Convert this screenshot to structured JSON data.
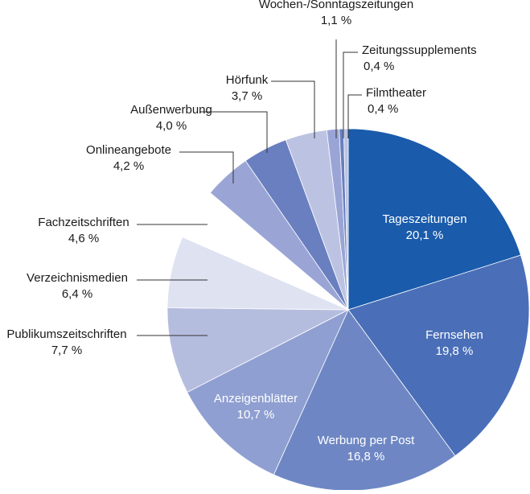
{
  "chart_data": {
    "type": "pie",
    "start": "12 o'clock",
    "direction": "clockwise",
    "slices": [
      {
        "label": "Tageszeitungen",
        "value": 20.1,
        "display": "20,1 %",
        "color": "#1a5bab",
        "label_color": "#ffffff",
        "label_placement": "inside"
      },
      {
        "label": "Fernsehen",
        "value": 19.8,
        "display": "19,8 %",
        "color": "#4a6fb8",
        "label_color": "#ffffff",
        "label_placement": "inside"
      },
      {
        "label": "Werbung per Post",
        "value": 16.8,
        "display": "16,8 %",
        "color": "#6e87c4",
        "label_color": "#ffffff",
        "label_placement": "inside"
      },
      {
        "label": "Anzeigenblätter",
        "value": 10.7,
        "display": "10,7 %",
        "color": "#8f9fd1",
        "label_color": "#ffffff",
        "label_placement": "inside"
      },
      {
        "label": "Publikumszeitschriften",
        "value": 7.7,
        "display": "7,7 %",
        "color": "#b5bddf",
        "label_color": "#1a1a1a",
        "label_placement": "outside-left"
      },
      {
        "label": "Verzeichnismedien",
        "value": 6.4,
        "display": "6,4 %",
        "color": "#dfe2f1",
        "label_color": "#1a1a1a",
        "label_placement": "outside-left"
      },
      {
        "label": "Fachzeitschriften",
        "value": 4.6,
        "display": "4,6 %",
        "color": "#ffffff",
        "label_color": "#1a1a1a",
        "label_placement": "outside-left"
      },
      {
        "label": "Onlineangebote",
        "value": 4.2,
        "display": "4,2 %",
        "color": "#9aa5d6",
        "label_color": "#1a1a1a",
        "label_placement": "outside-top"
      },
      {
        "label": "Außenwerbung",
        "value": 4.0,
        "display": "4,0 %",
        "color": "#6a7fc0",
        "label_color": "#1a1a1a",
        "label_placement": "outside-top"
      },
      {
        "label": "Hörfunk",
        "value": 3.7,
        "display": "3,7 %",
        "color": "#bcc3e2",
        "label_color": "#1a1a1a",
        "label_placement": "outside-top"
      },
      {
        "label": "Wochen-/Sonntagszeitungen",
        "value": 1.1,
        "display": "1,1 %",
        "color": "#9aa5d6",
        "label_color": "#1a1a1a",
        "label_placement": "outside-top"
      },
      {
        "label": "Zeitungssupplements",
        "value": 0.4,
        "display": "0,4 %",
        "color": "#6a7fc0",
        "label_color": "#1a1a1a",
        "label_placement": "outside-top"
      },
      {
        "label": "Filmtheater",
        "value": 0.4,
        "display": "0,4 %",
        "color": "#bcc3e2",
        "label_color": "#1a1a1a",
        "label_placement": "outside-top"
      }
    ]
  }
}
